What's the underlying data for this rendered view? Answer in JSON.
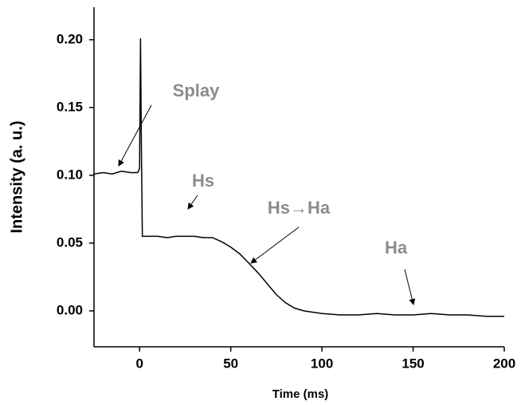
{
  "chart_data": {
    "type": "line",
    "x_label": "Time (ms)",
    "y_label": "Intensity (a. u.)",
    "x": [
      -25,
      -20,
      -15,
      -10,
      -5,
      -1,
      0,
      0.5,
      1,
      1.5,
      5,
      10,
      15,
      20,
      25,
      30,
      35,
      40,
      45,
      50,
      55,
      60,
      65,
      70,
      75,
      80,
      85,
      90,
      95,
      100,
      110,
      120,
      130,
      140,
      150,
      160,
      170,
      180,
      190,
      200
    ],
    "series": [
      {
        "color": "#000000",
        "values": [
          0.101,
          0.102,
          0.101,
          0.103,
          0.102,
          0.102,
          0.105,
          0.201,
          0.12,
          0.055,
          0.055,
          0.055,
          0.054,
          0.055,
          0.055,
          0.055,
          0.054,
          0.054,
          0.051,
          0.047,
          0.042,
          0.035,
          0.028,
          0.02,
          0.012,
          0.006,
          0.002,
          0,
          -0.001,
          -0.002,
          -0.003,
          -0.003,
          -0.002,
          -0.003,
          -0.003,
          -0.002,
          -0.003,
          -0.003,
          -0.004,
          -0.004
        ]
      }
    ],
    "xlim": [
      -25,
      200
    ],
    "xticks": [
      0,
      50,
      100,
      150,
      200
    ],
    "ylim": [
      -0.0265,
      0.224
    ],
    "yticks": [
      {
        "value": 0,
        "label": "0.00"
      },
      0.05,
      {
        "value": 0.1,
        "label": "0.10"
      },
      0.15,
      {
        "value": 0.2,
        "label": "0.20"
      }
    ],
    "annotations": [
      {
        "text": "Splay"
      },
      {
        "text": "Hs"
      },
      {
        "text": "Hs→Ha"
      },
      {
        "text": "Ha"
      }
    ]
  }
}
